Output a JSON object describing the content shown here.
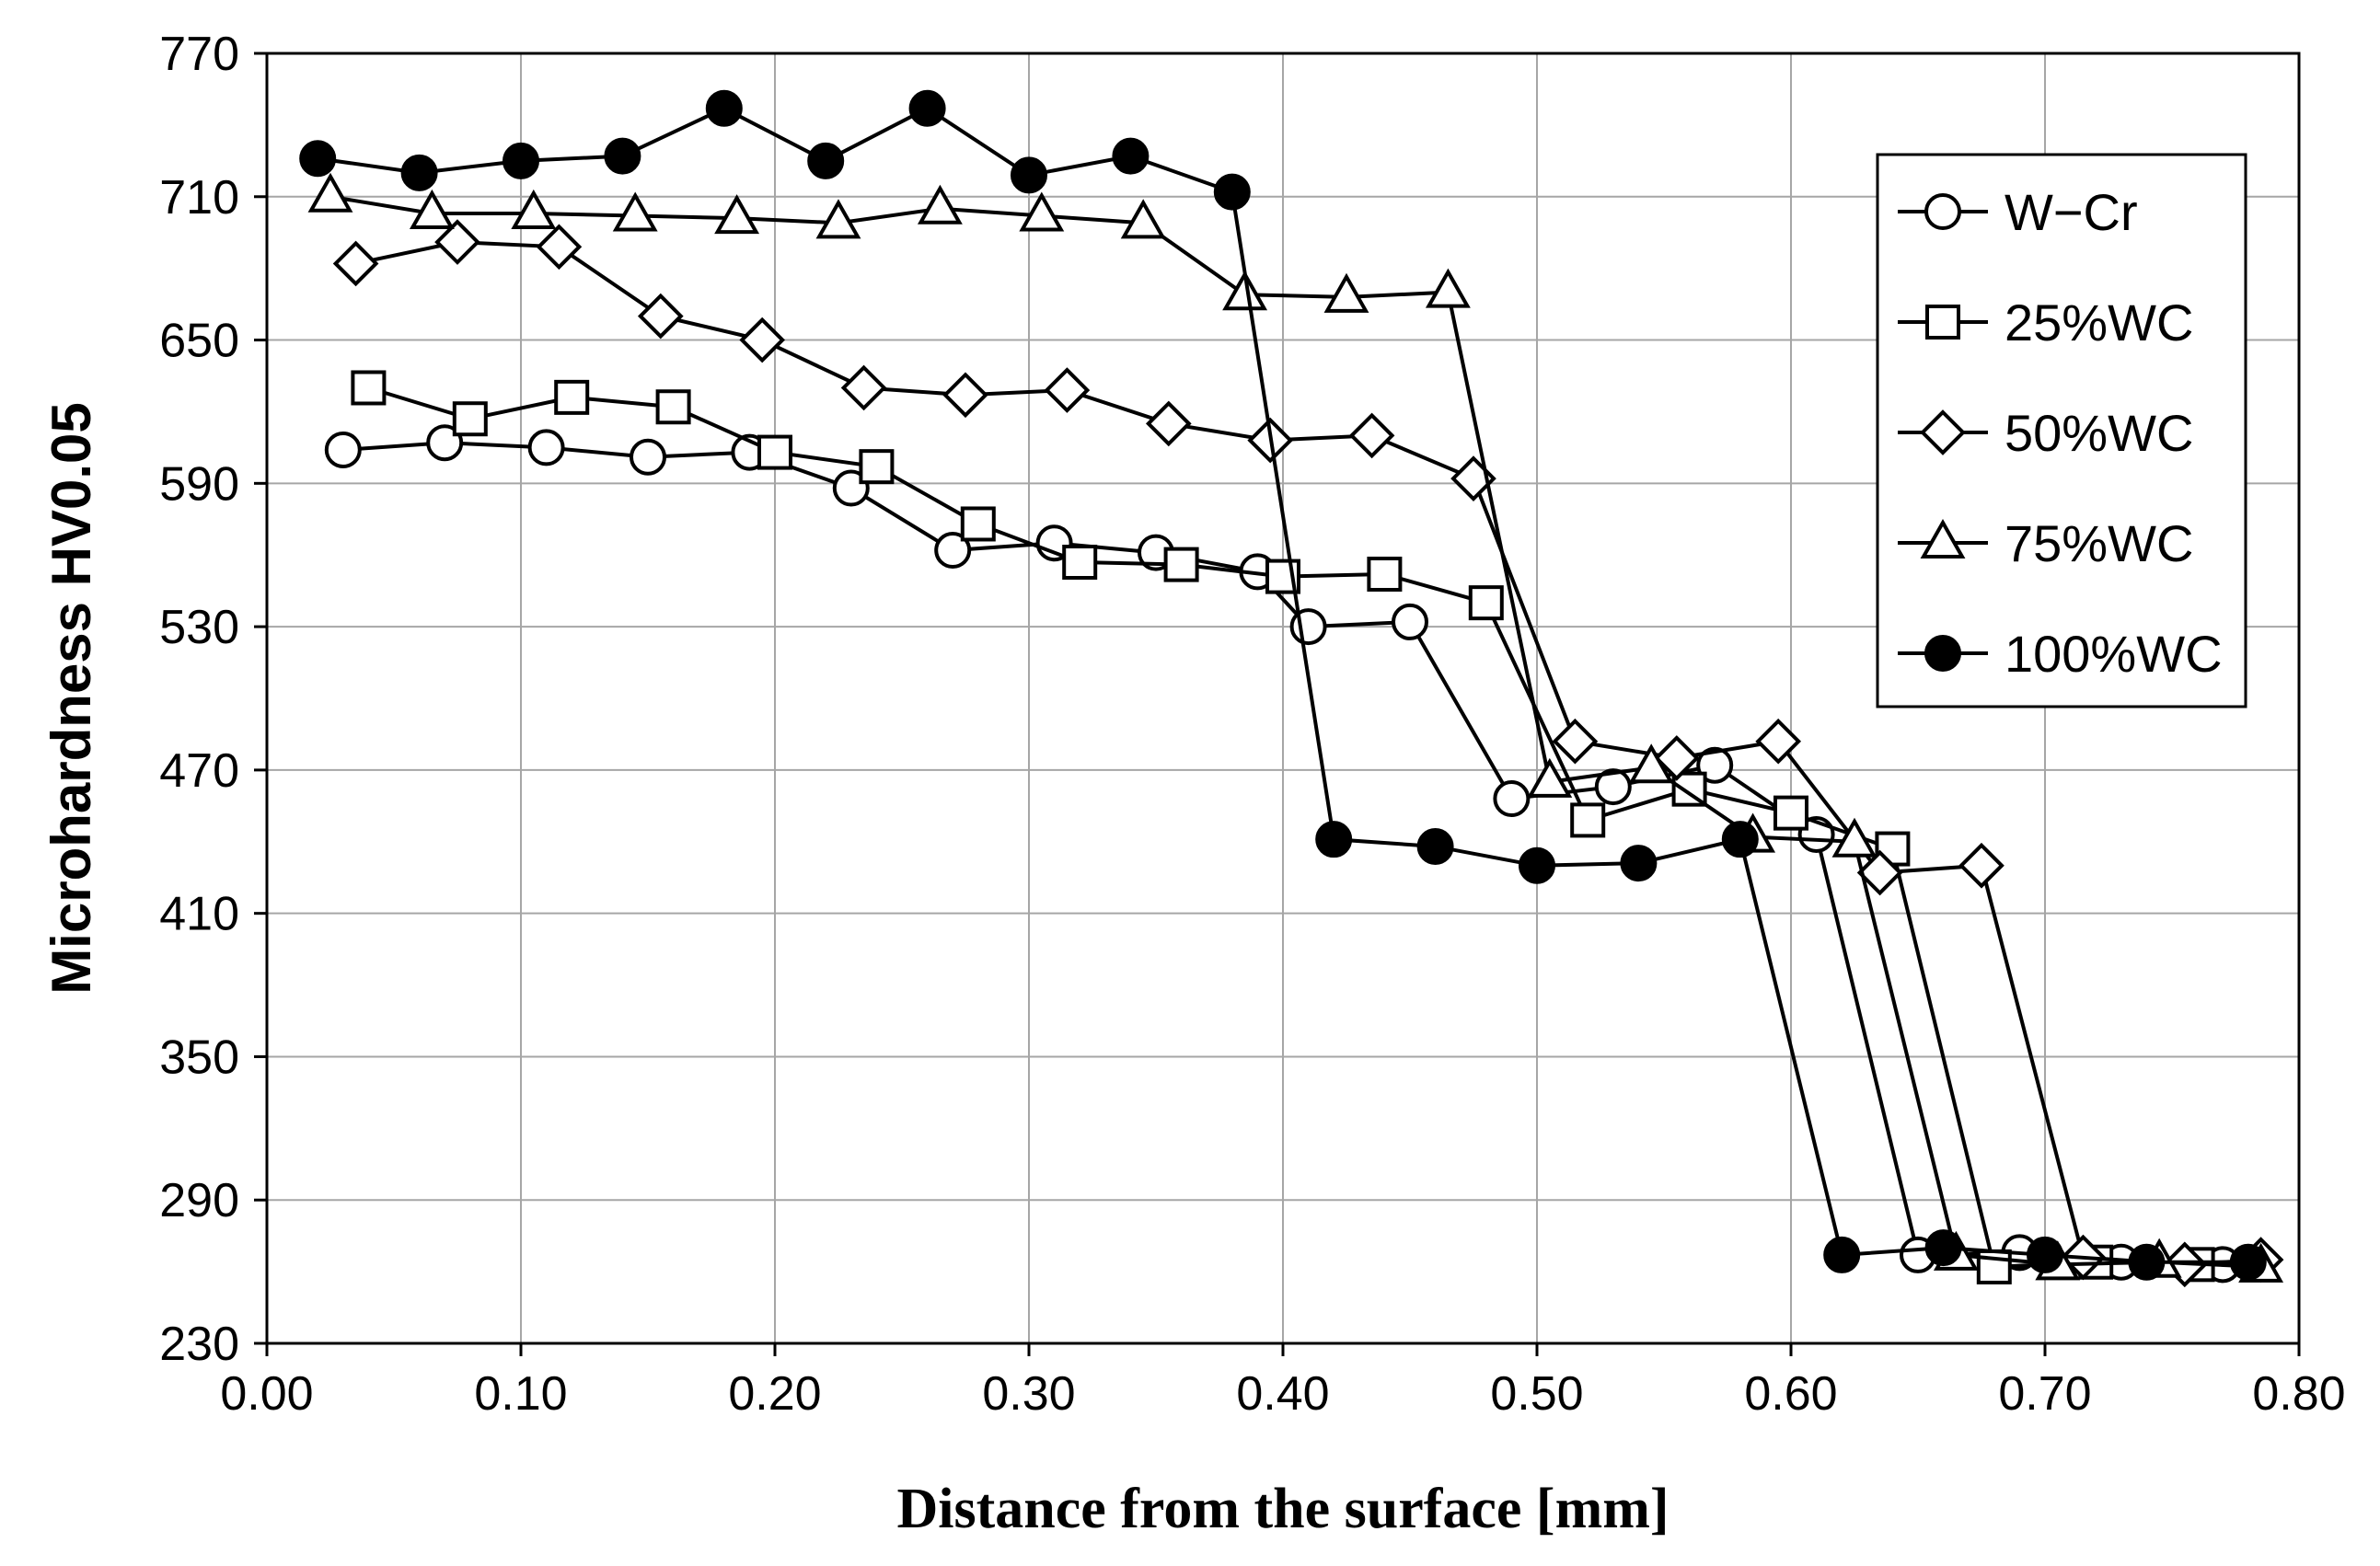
{
  "chart_data": {
    "type": "line",
    "title": "",
    "xlabel": "Distance from the surface [mm]",
    "ylabel": "Microhardness HV0.05",
    "xlim": [
      0.0,
      0.8
    ],
    "ylim": [
      230,
      770
    ],
    "xticks": [
      "0.00",
      "0.10",
      "0.20",
      "0.30",
      "0.40",
      "0.50",
      "0.60",
      "0.70",
      "0.80"
    ],
    "yticks": [
      "230",
      "290",
      "350",
      "410",
      "470",
      "530",
      "590",
      "650",
      "710",
      "770"
    ],
    "grid": true,
    "legend_position": "top-right",
    "series": [
      {
        "name": "W−Cr",
        "marker": "circle-open",
        "x": [
          0.03,
          0.07,
          0.11,
          0.15,
          0.19,
          0.23,
          0.27,
          0.31,
          0.35,
          0.39,
          0.41,
          0.45,
          0.49,
          0.53,
          0.57,
          0.61,
          0.65,
          0.69,
          0.73,
          0.77
        ],
        "y": [
          604,
          607,
          605,
          601,
          603,
          588,
          562,
          565,
          561,
          553,
          530,
          532,
          458,
          463,
          472,
          443,
          267,
          268,
          264,
          263
        ]
      },
      {
        "name": "25%WC",
        "marker": "square-open",
        "x": [
          0.04,
          0.08,
          0.12,
          0.16,
          0.2,
          0.24,
          0.28,
          0.32,
          0.36,
          0.4,
          0.44,
          0.48,
          0.52,
          0.56,
          0.6,
          0.64,
          0.68,
          0.72,
          0.76
        ],
        "y": [
          630,
          617,
          626,
          622,
          603,
          597,
          573,
          557,
          556,
          551,
          552,
          540,
          449,
          462,
          452,
          437,
          262,
          264,
          263
        ]
      },
      {
        "name": "50%WC",
        "marker": "diamond-open",
        "x": [
          0.035,
          0.075,
          0.115,
          0.155,
          0.195,
          0.235,
          0.275,
          0.315,
          0.355,
          0.395,
          0.435,
          0.475,
          0.515,
          0.555,
          0.595,
          0.635,
          0.675,
          0.715,
          0.755,
          0.785
        ],
        "y": [
          682,
          691,
          689,
          660,
          650,
          630,
          627,
          629,
          615,
          608,
          610,
          592,
          482,
          475,
          482,
          427,
          430,
          266,
          263,
          265
        ]
      },
      {
        "name": "75%WC",
        "marker": "triangle-open",
        "x": [
          0.025,
          0.065,
          0.105,
          0.145,
          0.185,
          0.225,
          0.265,
          0.305,
          0.345,
          0.385,
          0.425,
          0.465,
          0.505,
          0.545,
          0.585,
          0.625,
          0.665,
          0.705,
          0.745,
          0.785
        ],
        "y": [
          710,
          703,
          703,
          702,
          701,
          699,
          705,
          702,
          699,
          669,
          668,
          670,
          465,
          471,
          442,
          440,
          267,
          263,
          264,
          262
        ]
      },
      {
        "name": "100%WC",
        "marker": "circle-filled",
        "x": [
          0.02,
          0.06,
          0.1,
          0.14,
          0.18,
          0.22,
          0.26,
          0.3,
          0.34,
          0.38,
          0.42,
          0.46,
          0.5,
          0.54,
          0.58,
          0.62,
          0.66,
          0.7,
          0.74,
          0.78
        ],
        "y": [
          726,
          720,
          725,
          727,
          747,
          725,
          747,
          719,
          727,
          712,
          441,
          438,
          430,
          431,
          441,
          267,
          270,
          267,
          264,
          264
        ]
      }
    ]
  }
}
